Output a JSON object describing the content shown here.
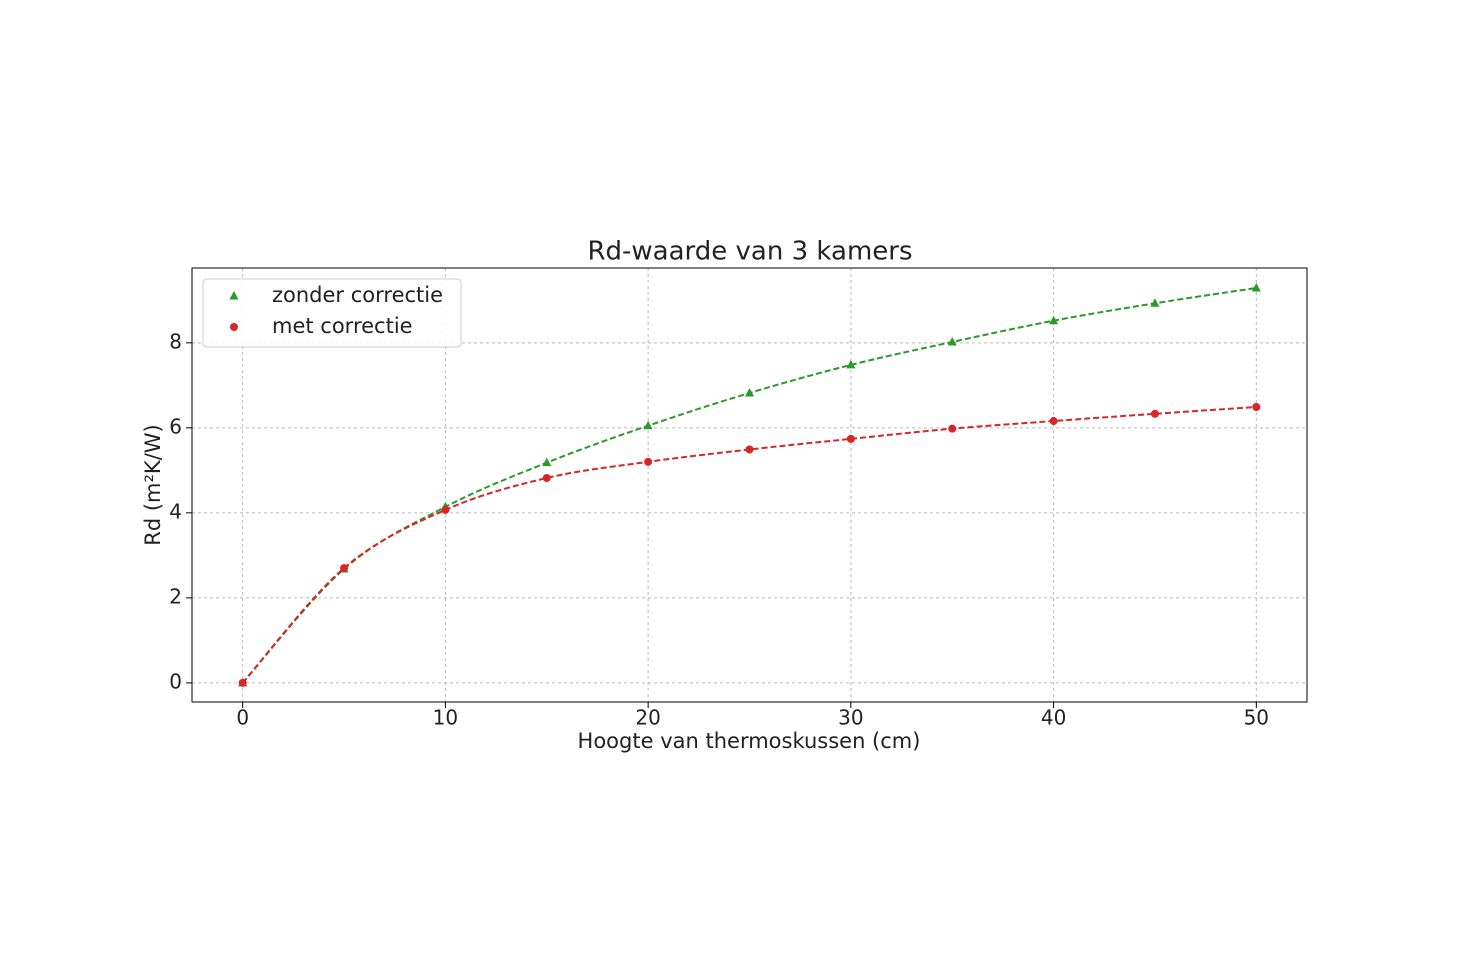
{
  "chart_data": {
    "type": "line",
    "title": "Rd-waarde van 3 kamers",
    "x_label": "Hoogte van thermoskussen (cm)",
    "y_label": "Rd (m²K/W)",
    "x": [
      0,
      5,
      10,
      15,
      20,
      25,
      30,
      35,
      40,
      45,
      50
    ],
    "series": [
      {
        "name": "zonder correctie",
        "color": "#2a9a2a",
        "marker": "triangle",
        "values": [
          0,
          2.68,
          4.14,
          5.18,
          6.05,
          6.82,
          7.48,
          8.02,
          8.52,
          8.93,
          9.29
        ]
      },
      {
        "name": "met correctie",
        "color": "#d62728",
        "marker": "circle",
        "values": [
          0,
          2.7,
          4.07,
          4.82,
          5.2,
          5.49,
          5.74,
          5.98,
          6.16,
          6.33,
          6.49
        ]
      }
    ],
    "xlim": [
      -2.5,
      52.5
    ],
    "ylim": [
      -0.45,
      9.76
    ],
    "xticks": [
      0,
      10,
      20,
      30,
      40,
      50
    ],
    "yticks": [
      0,
      2,
      4,
      6,
      8
    ],
    "grid": true,
    "legend": "upper left"
  }
}
